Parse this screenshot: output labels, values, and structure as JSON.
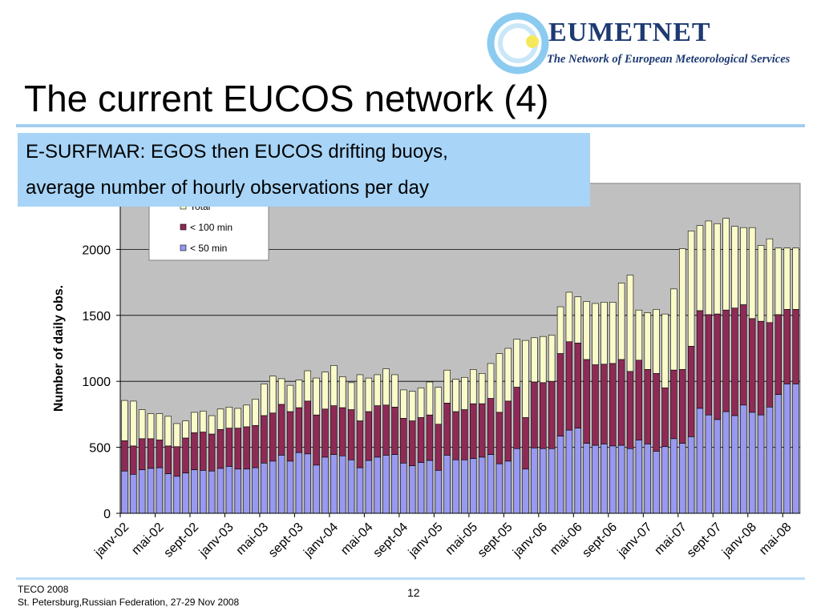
{
  "slide": {
    "title": "The current EUCOS network (4)",
    "subtitle_line1": "E-SURFMAR: EGOS then EUCOS drifting buoys,",
    "subtitle_line2": "average number of hourly observations per day"
  },
  "logo": {
    "name": "EUMETNET",
    "tagline": "The Network of European Meteorological Services",
    "colors": {
      "ring": "#8ccbf0",
      "dot": "#f5e85a",
      "text": "#1e3a73"
    }
  },
  "footer": {
    "line1": "TECO 2008",
    "line2": "St. Petersburg,Russian Federation, 27-29 Nov 2008",
    "page_number": "12"
  },
  "chart_data": {
    "type": "bar",
    "stacked": true,
    "ylabel": "Number of daily obs.",
    "xlabel": "",
    "ylim": [
      0,
      2500
    ],
    "yticks": [
      0,
      500,
      1000,
      1500,
      2000
    ],
    "legend": {
      "placement": "top-left",
      "entries": [
        "Total",
        "< 100 min",
        "< 50 min"
      ]
    },
    "colors": {
      "total": "#fbfbc9",
      "lt100": "#8e2a55",
      "lt50": "#9999f2",
      "plot_bg": "#c0c0c0"
    },
    "x_labels": [
      "janv-02",
      "mai-02",
      "sept-02",
      "janv-03",
      "mai-03",
      "sept-03",
      "janv-04",
      "mai-04",
      "sept-04",
      "janv-05",
      "mai-05",
      "sept-05",
      "janv-06",
      "mai-06",
      "sept-06",
      "janv-07",
      "mai-07",
      "sept-07",
      "janv-08",
      "mai-08"
    ],
    "categories": [
      "janv-02",
      "févr-02",
      "mars-02",
      "avr-02",
      "mai-02",
      "juin-02",
      "juil-02",
      "août-02",
      "sept-02",
      "oct-02",
      "nov-02",
      "déc-02",
      "janv-03",
      "févr-03",
      "mars-03",
      "avr-03",
      "mai-03",
      "juin-03",
      "juil-03",
      "août-03",
      "sept-03",
      "oct-03",
      "nov-03",
      "déc-03",
      "janv-04",
      "févr-04",
      "mars-04",
      "avr-04",
      "mai-04",
      "juin-04",
      "juil-04",
      "août-04",
      "sept-04",
      "oct-04",
      "nov-04",
      "déc-04",
      "janv-05",
      "févr-05",
      "mars-05",
      "avr-05",
      "mai-05",
      "juin-05",
      "juil-05",
      "août-05",
      "sept-05",
      "oct-05",
      "nov-05",
      "déc-05",
      "janv-06",
      "févr-06",
      "mars-06",
      "avr-06",
      "mai-06",
      "juin-06",
      "juil-06",
      "août-06",
      "sept-06",
      "oct-06",
      "nov-06",
      "déc-06",
      "janv-07",
      "févr-07",
      "mars-07",
      "avr-07",
      "mai-07",
      "juin-07",
      "juil-07",
      "août-07",
      "sept-07",
      "oct-07",
      "nov-07",
      "déc-07",
      "janv-08",
      "févr-08",
      "mars-08",
      "avr-08",
      "mai-08",
      "juin-08"
    ],
    "series": [
      {
        "name": "Total",
        "values": [
          855,
          850,
          785,
          755,
          755,
          735,
          680,
          700,
          765,
          775,
          740,
          790,
          805,
          795,
          820,
          865,
          980,
          1040,
          1020,
          970,
          1010,
          1080,
          1025,
          1070,
          1120,
          1035,
          990,
          1050,
          1025,
          1050,
          1095,
          1050,
          935,
          925,
          950,
          995,
          955,
          1085,
          1015,
          1030,
          1090,
          1060,
          1135,
          1210,
          1250,
          1320,
          1310,
          1330,
          1340,
          1350,
          1565,
          1675,
          1640,
          1605,
          1590,
          1600,
          1600,
          1745,
          1805,
          1540,
          1520,
          1545,
          1510,
          1700,
          2005,
          2140,
          2180,
          2215,
          2195,
          2235,
          2175,
          2165,
          2165,
          2030,
          2080,
          2010,
          2010,
          2010
        ]
      },
      {
        "name": "< 100 min",
        "values": [
          550,
          510,
          565,
          565,
          555,
          510,
          505,
          570,
          610,
          615,
          600,
          635,
          645,
          645,
          655,
          665,
          740,
          760,
          825,
          770,
          800,
          850,
          745,
          790,
          815,
          800,
          785,
          700,
          770,
          815,
          820,
          805,
          720,
          700,
          725,
          745,
          675,
          835,
          770,
          785,
          830,
          830,
          870,
          765,
          850,
          955,
          725,
          995,
          990,
          1000,
          1210,
          1300,
          1290,
          1165,
          1125,
          1130,
          1135,
          1165,
          1075,
          1160,
          1090,
          1060,
          950,
          1085,
          1090,
          1265,
          1535,
          1505,
          1510,
          1540,
          1555,
          1580,
          1475,
          1455,
          1445,
          1505,
          1545,
          1545
        ]
      },
      {
        "name": "< 50 min",
        "values": [
          320,
          295,
          330,
          340,
          345,
          300,
          280,
          305,
          330,
          325,
          320,
          340,
          355,
          335,
          335,
          345,
          380,
          395,
          440,
          395,
          460,
          450,
          365,
          425,
          445,
          435,
          405,
          345,
          400,
          425,
          440,
          445,
          380,
          360,
          385,
          400,
          325,
          440,
          405,
          405,
          415,
          425,
          445,
          375,
          395,
          490,
          335,
          495,
          490,
          490,
          585,
          630,
          645,
          530,
          515,
          525,
          510,
          515,
          490,
          555,
          525,
          470,
          505,
          565,
          530,
          580,
          795,
          745,
          710,
          770,
          740,
          820,
          765,
          745,
          805,
          900,
          980,
          980
        ]
      }
    ]
  }
}
